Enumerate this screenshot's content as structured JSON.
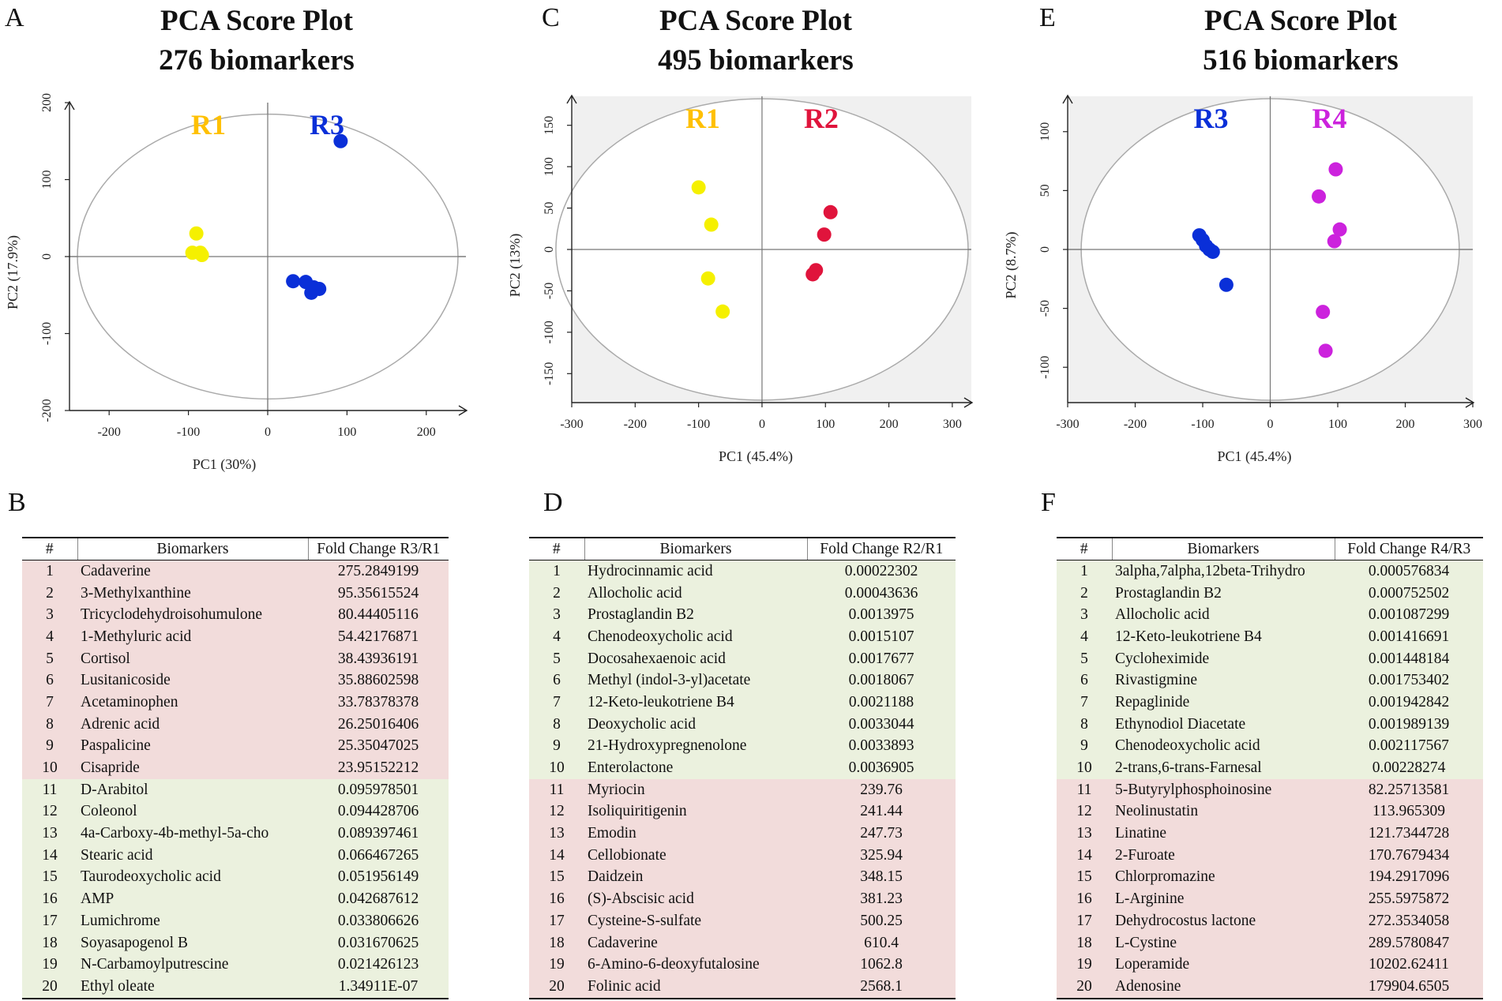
{
  "panels": [
    {
      "letter": "A",
      "title_line1": "PCA Score Plot",
      "title_line2": "276 biomarkers",
      "table_letter": "B",
      "table": {
        "col_num": "#",
        "col_name": "Biomarkers",
        "col_fc": "Fold Change  R3/R1",
        "rows": [
          {
            "num": "1",
            "name": "Cadaverine",
            "fc": "275.2849199",
            "hl": "red"
          },
          {
            "num": "2",
            "name": "3-Methylxanthine",
            "fc": "95.35615524",
            "hl": "red"
          },
          {
            "num": "3",
            "name": "Tricyclodehydroisohumulone",
            "fc": "80.44405116",
            "hl": "red"
          },
          {
            "num": "4",
            "name": "1-Methyluric acid",
            "fc": "54.42176871",
            "hl": "red"
          },
          {
            "num": "5",
            "name": "Cortisol",
            "fc": "38.43936191",
            "hl": "red"
          },
          {
            "num": "6",
            "name": "Lusitanicoside",
            "fc": "35.88602598",
            "hl": "red"
          },
          {
            "num": "7",
            "name": "Acetaminophen",
            "fc": "33.78378378",
            "hl": "red"
          },
          {
            "num": "8",
            "name": "Adrenic acid",
            "fc": "26.25016406",
            "hl": "red"
          },
          {
            "num": "9",
            "name": "Paspalicine",
            "fc": "25.35047025",
            "hl": "red"
          },
          {
            "num": "10",
            "name": "Cisapride",
            "fc": "23.95152212",
            "hl": "red"
          },
          {
            "num": "11",
            "name": "D-Arabitol",
            "fc": "0.095978501",
            "hl": "green"
          },
          {
            "num": "12",
            "name": "Coleonol",
            "fc": "0.094428706",
            "hl": "green"
          },
          {
            "num": "13",
            "name": "4a-Carboxy-4b-methyl-5a-cho",
            "fc": "0.089397461",
            "hl": "green"
          },
          {
            "num": "14",
            "name": "Stearic acid",
            "fc": "0.066467265",
            "hl": "green"
          },
          {
            "num": "15",
            "name": "Taurodeoxycholic acid",
            "fc": "0.051956149",
            "hl": "green"
          },
          {
            "num": "16",
            "name": "AMP",
            "fc": "0.042687612",
            "hl": "green"
          },
          {
            "num": "17",
            "name": "Lumichrome",
            "fc": "0.033806626",
            "hl": "green"
          },
          {
            "num": "18",
            "name": "Soyasapogenol B",
            "fc": "0.031670625",
            "hl": "green"
          },
          {
            "num": "19",
            "name": "N-Carbamoylputrescine",
            "fc": "0.021426123",
            "hl": "green"
          },
          {
            "num": "20",
            "name": "Ethyl oleate",
            "fc": "1.34911E-07",
            "hl": "green"
          }
        ]
      }
    },
    {
      "letter": "C",
      "title_line1": "PCA Score Plot",
      "title_line2": "495 biomarkers",
      "table_letter": "D",
      "table": {
        "col_num": "#",
        "col_name": "Biomarkers",
        "col_fc": "Fold Change  R2/R1",
        "rows": [
          {
            "num": "1",
            "name": "Hydrocinnamic acid",
            "fc": "0.00022302",
            "hl": "green"
          },
          {
            "num": "2",
            "name": "Allocholic acid",
            "fc": "0.00043636",
            "hl": "green"
          },
          {
            "num": "3",
            "name": "Prostaglandin B2",
            "fc": "0.0013975",
            "hl": "green"
          },
          {
            "num": "4",
            "name": "Chenodeoxycholic acid",
            "fc": "0.0015107",
            "hl": "green"
          },
          {
            "num": "5",
            "name": "Docosahexaenoic acid",
            "fc": "0.0017677",
            "hl": "green"
          },
          {
            "num": "6",
            "name": "Methyl (indol-3-yl)acetate",
            "fc": "0.0018067",
            "hl": "green"
          },
          {
            "num": "7",
            "name": "12-Keto-leukotriene B4",
            "fc": "0.0021188",
            "hl": "green"
          },
          {
            "num": "8",
            "name": "Deoxycholic acid",
            "fc": "0.0033044",
            "hl": "green"
          },
          {
            "num": "9",
            "name": "21-Hydroxypregnenolone",
            "fc": "0.0033893",
            "hl": "green"
          },
          {
            "num": "10",
            "name": "Enterolactone",
            "fc": "0.0036905",
            "hl": "green"
          },
          {
            "num": "11",
            "name": "Myriocin",
            "fc": "239.76",
            "hl": "red"
          },
          {
            "num": "12",
            "name": "Isoliquiritigenin",
            "fc": "241.44",
            "hl": "red"
          },
          {
            "num": "13",
            "name": "Emodin",
            "fc": "247.73",
            "hl": "red"
          },
          {
            "num": "14",
            "name": "Cellobionate",
            "fc": "325.94",
            "hl": "red"
          },
          {
            "num": "15",
            "name": "Daidzein",
            "fc": "348.15",
            "hl": "red"
          },
          {
            "num": "16",
            "name": "(S)-Abscisic acid",
            "fc": "381.23",
            "hl": "red"
          },
          {
            "num": "17",
            "name": "Cysteine-S-sulfate",
            "fc": "500.25",
            "hl": "red"
          },
          {
            "num": "18",
            "name": "Cadaverine",
            "fc": "610.4",
            "hl": "red"
          },
          {
            "num": "19",
            "name": "6-Amino-6-deoxyfutalosine",
            "fc": "1062.8",
            "hl": "red"
          },
          {
            "num": "20",
            "name": "Folinic acid",
            "fc": "2568.1",
            "hl": "red"
          }
        ]
      }
    },
    {
      "letter": "E",
      "title_line1": "PCA Score Plot",
      "title_line2": "516 biomarkers",
      "table_letter": "F",
      "table": {
        "col_num": "#",
        "col_name": "Biomarkers",
        "col_fc": "Fold Change  R4/R3",
        "rows": [
          {
            "num": "1",
            "name": "3alpha,7alpha,12beta-Trihydro",
            "fc": "0.000576834",
            "hl": "green"
          },
          {
            "num": "2",
            "name": "Prostaglandin B2",
            "fc": "0.000752502",
            "hl": "green"
          },
          {
            "num": "3",
            "name": "Allocholic acid",
            "fc": "0.001087299",
            "hl": "green"
          },
          {
            "num": "4",
            "name": "12-Keto-leukotriene B4",
            "fc": "0.001416691",
            "hl": "green"
          },
          {
            "num": "5",
            "name": "Cycloheximide",
            "fc": "0.001448184",
            "hl": "green"
          },
          {
            "num": "6",
            "name": "Rivastigmine",
            "fc": "0.001753402",
            "hl": "green"
          },
          {
            "num": "7",
            "name": "Repaglinide",
            "fc": "0.001942842",
            "hl": "green"
          },
          {
            "num": "8",
            "name": "Ethynodiol Diacetate",
            "fc": "0.001989139",
            "hl": "green"
          },
          {
            "num": "9",
            "name": "Chenodeoxycholic acid",
            "fc": "0.002117567",
            "hl": "green"
          },
          {
            "num": "10",
            "name": "2-trans,6-trans-Farnesal",
            "fc": "0.00228274",
            "hl": "green"
          },
          {
            "num": "11",
            "name": "5-Butyrylphosphoinosine",
            "fc": "82.25713581",
            "hl": "red"
          },
          {
            "num": "12",
            "name": "Neolinustatin",
            "fc": "113.965309",
            "hl": "red"
          },
          {
            "num": "13",
            "name": "Linatine",
            "fc": "121.7344728",
            "hl": "red"
          },
          {
            "num": "14",
            "name": "2-Furoate",
            "fc": "170.7679434",
            "hl": "red"
          },
          {
            "num": "15",
            "name": "Chlorpromazine",
            "fc": "194.2917096",
            "hl": "red"
          },
          {
            "num": "16",
            "name": "L-Arginine",
            "fc": "255.5975872",
            "hl": "red"
          },
          {
            "num": "17",
            "name": "Dehydrocostus lactone",
            "fc": "272.3534058",
            "hl": "red"
          },
          {
            "num": "18",
            "name": "L-Cystine",
            "fc": "289.5780847",
            "hl": "red"
          },
          {
            "num": "19",
            "name": "Loperamide",
            "fc": "10202.62411",
            "hl": "red"
          },
          {
            "num": "20",
            "name": "Adenosine",
            "fc": "179904.6505",
            "hl": "red"
          }
        ]
      }
    }
  ],
  "chart_data": [
    {
      "type": "scatter",
      "title": "PCA Score Plot 276 biomarkers",
      "xlabel": "PC1 (30%)",
      "ylabel": "PC2 (17.9%)",
      "xlim": [
        -250,
        250
      ],
      "ylim": [
        -200,
        200
      ],
      "xticks": [
        -200,
        -100,
        0,
        100,
        200
      ],
      "yticks": [
        -200,
        -100,
        0,
        100,
        200
      ],
      "xtick_labels": [
        "-200",
        "-100",
        "0",
        "100",
        "200"
      ],
      "ytick_labels": [
        "-200",
        "-100",
        "0",
        "100",
        "200"
      ],
      "background": "#ffffff",
      "ellipse_rx": 240,
      "ellipse_ry": 185,
      "series": [
        {
          "name": "R1",
          "color": "#ffc000",
          "point_color": "#f5f000",
          "points": [
            [
              -90,
              30
            ],
            [
              -95,
              5
            ],
            [
              -85,
              5
            ],
            [
              -83,
              2
            ]
          ]
        },
        {
          "name": "R3",
          "color": "#0a2fd8",
          "point_color": "#0a2fd8",
          "points": [
            [
              92,
              150
            ],
            [
              32,
              -32
            ],
            [
              48,
              -33
            ],
            [
              55,
              -47
            ],
            [
              65,
              -42
            ],
            [
              58,
              -40
            ]
          ]
        }
      ]
    },
    {
      "type": "scatter",
      "title": "PCA Score Plot 495 biomarkers",
      "xlabel": "PC1 (45.4%)",
      "ylabel": "PC2 (13%)",
      "xlim": [
        -300,
        330
      ],
      "ylim": [
        -185,
        185
      ],
      "xticks": [
        -300,
        -200,
        -100,
        0,
        100,
        200,
        300
      ],
      "yticks": [
        -150,
        -100,
        -50,
        0,
        50,
        100,
        150
      ],
      "xtick_labels": [
        "-300",
        "-200",
        "-100",
        "0",
        "100",
        "200",
        "300"
      ],
      "ytick_labels": [
        "-150",
        "-100",
        "-50",
        "0",
        "50",
        "100",
        "150"
      ],
      "background": "#f0f0f0",
      "ellipse_rx": 325,
      "ellipse_ry": 182,
      "series": [
        {
          "name": "R1",
          "color": "#ffc000",
          "point_color": "#f5f000",
          "points": [
            [
              -100,
              75
            ],
            [
              -80,
              30
            ],
            [
              -85,
              -35
            ],
            [
              -62,
              -75
            ]
          ]
        },
        {
          "name": "R2",
          "color": "#e0143c",
          "point_color": "#e0143c",
          "points": [
            [
              108,
              45
            ],
            [
              98,
              18
            ],
            [
              85,
              -25
            ],
            [
              80,
              -30
            ]
          ]
        }
      ]
    },
    {
      "type": "scatter",
      "title": "PCA Score Plot 516 biomarkers",
      "xlabel": "PC1 (45.4%)",
      "ylabel": "PC2 (8.7%)",
      "xlim": [
        -300,
        300
      ],
      "ylim": [
        -130,
        130
      ],
      "xticks": [
        -300,
        -200,
        -100,
        0,
        100,
        200,
        300
      ],
      "yticks": [
        -100,
        -50,
        0,
        50,
        100
      ],
      "xtick_labels": [
        "-300",
        "-200",
        "-100",
        "0",
        "100",
        "200",
        "300"
      ],
      "ytick_labels": [
        "-100",
        "-50",
        "0",
        "50",
        "100"
      ],
      "background": "#f0f0f0",
      "ellipse_rx": 280,
      "ellipse_ry": 128,
      "series": [
        {
          "name": "R3",
          "color": "#0a2fd8",
          "point_color": "#0a2fd8",
          "points": [
            [
              -105,
              12
            ],
            [
              -100,
              8
            ],
            [
              -95,
              3
            ],
            [
              -90,
              0
            ],
            [
              -85,
              -2
            ],
            [
              -65,
              -30
            ]
          ]
        },
        {
          "name": "R4",
          "color": "#cc22dd",
          "point_color": "#cc22dd",
          "points": [
            [
              97,
              68
            ],
            [
              72,
              45
            ],
            [
              103,
              17
            ],
            [
              95,
              7
            ],
            [
              78,
              -53
            ],
            [
              82,
              -86
            ]
          ]
        }
      ]
    }
  ]
}
